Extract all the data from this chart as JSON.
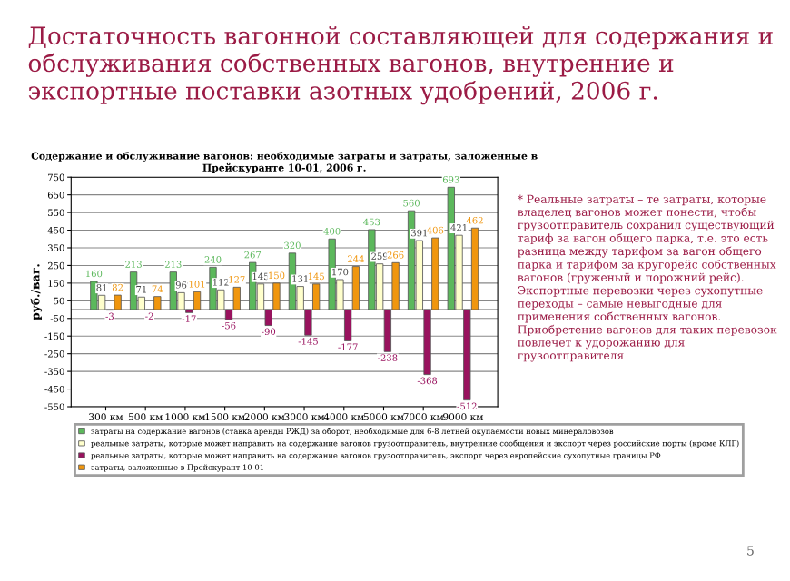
{
  "chart_data": {
    "type": "bar",
    "title": "Достаточность вагонной составляющей для содержания и обслуживания собственных вагонов, внутренние и экспортные поставки азотных удобрений, 2006 г.",
    "subtitle": "Содержание и обслуживание вагонов: необходимые затраты и затраты, заложенные в Прейскуранте 10-01, 2006 г.",
    "ylabel": "руб./ваг.",
    "categories": [
      "300 км",
      "500 км",
      "1000 км",
      "1500 км",
      "2000 км",
      "3000 км",
      "4000 км",
      "5000 км",
      "7000 км",
      "9000 км"
    ],
    "series": [
      {
        "name": "затраты на содержание вагонов (ставка аренды РЖД) за оборот, необходимые для 6-8 летней окупаемости новых минераловозов",
        "color": "#5cb85c",
        "values": [
          160,
          213,
          213,
          240,
          267,
          320,
          400,
          453,
          560,
          693
        ]
      },
      {
        "name": "реальные затраты, которые может направить на содержание вагонов грузоотправитель, внутренние сообщения и экспорт через российские порты (кроме КЛГ)",
        "color": "#ffffcc",
        "values": [
          81,
          71,
          96,
          112,
          145,
          131,
          170,
          259,
          391,
          421
        ]
      },
      {
        "name": "реальные затраты, которые может направить на содержание вагонов грузоотправитель, экспорт через европейские сухопутные границы РФ",
        "color": "#99125e",
        "values": [
          -3,
          -2,
          -17,
          -56,
          -90,
          -145,
          -177,
          -238,
          -368,
          -512
        ]
      },
      {
        "name": "затраты, заложенные в Прейскурант 10-01",
        "color": "#f0960e",
        "values": [
          82,
          74,
          101,
          127,
          150,
          145,
          244,
          266,
          406,
          462
        ]
      }
    ],
    "ylim": [
      -550,
      750
    ],
    "yticks": [
      -550,
      -450,
      -350,
      -250,
      -150,
      -50,
      50,
      150,
      250,
      350,
      450,
      550,
      650,
      750
    ],
    "grid": "y",
    "legend": "bottom",
    "data_labels": true,
    "annotations": [
      "* Реальные затраты – те затраты, которые владелец вагонов может понести, чтобы грузоотправитель сохранил существующий тариф за вагон общего парка, т.е. это есть разница между тарифом за вагон общего парка и тарифом за кругорейс собственных вагонов (груженый и порожний рейс). Экспортные перевозки через сухопутные переходы – самые невыгодные для применения собственных вагонов. Приобретение вагонов для таких перевозок повлечет к удорожанию для грузоотправителя",
      "5"
    ]
  }
}
